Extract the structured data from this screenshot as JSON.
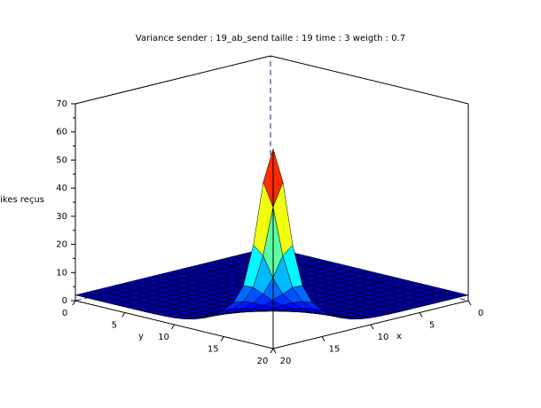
{
  "chart_data": {
    "type": "surface3d",
    "title": "Variance sender : 19_ab_send taille : 19 time : 3 weigth : 0.7",
    "zlabel": "spikes reçus",
    "xlabel": "x",
    "ylabel": "y",
    "x_range": [
      0,
      20
    ],
    "y_range": [
      0,
      20
    ],
    "zlim": [
      0,
      70
    ],
    "x_ticks": [
      "0",
      "5",
      "10",
      "15",
      "20"
    ],
    "y_ticks": [
      "0",
      "5",
      "10",
      "15",
      "20"
    ],
    "z_ticks": [
      "0",
      "10",
      "20",
      "30",
      "40",
      "50",
      "60",
      "70"
    ],
    "grid_size": 20,
    "peak": {
      "x": 20,
      "y": 20,
      "z": 71
    },
    "baseline_z": 2,
    "colormap": "jet",
    "surface_profile_z_along_edge": [
      2,
      2,
      2,
      2,
      2,
      2,
      2,
      2,
      2,
      2,
      3,
      4,
      5,
      6,
      8,
      11,
      16,
      24,
      37,
      55,
      71
    ],
    "series": [
      {
        "name": "",
        "values": [
          2,
          2,
          2,
          2,
          2,
          2,
          2,
          2,
          2,
          2,
          3,
          4,
          5,
          6,
          8,
          11,
          16,
          24,
          37,
          55,
          71
        ]
      }
    ]
  },
  "colors": {
    "box": "#000000",
    "hidden_edge": "#1f1f8f",
    "background": "#ffffff"
  }
}
